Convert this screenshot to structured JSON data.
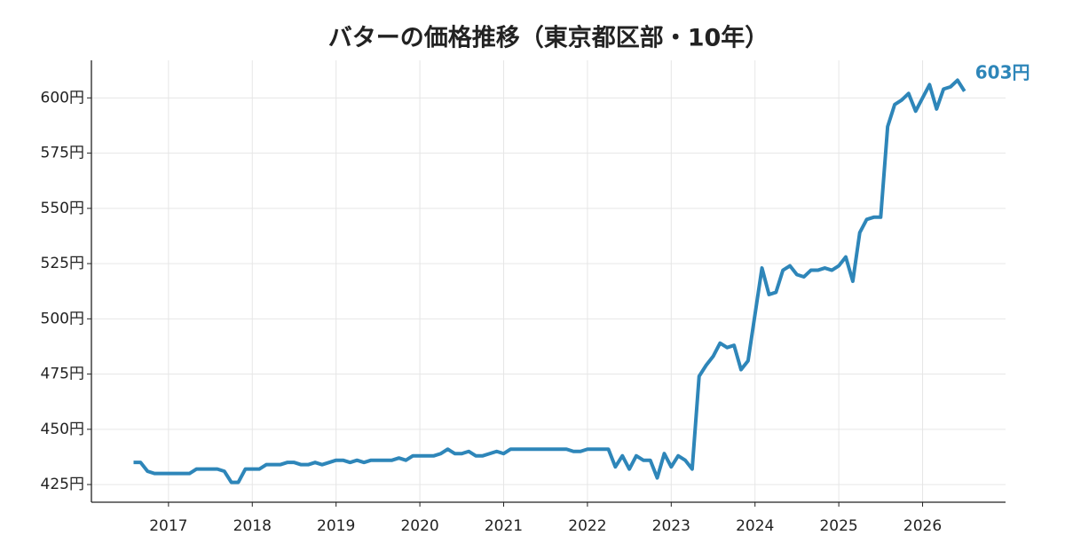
{
  "chart_data": {
    "type": "line",
    "title": "バターの価格推移（東京都区部・10年）",
    "x": [
      2016.583,
      2016.667,
      2016.75,
      2016.833,
      2016.917,
      2017,
      2017.083,
      2017.167,
      2017.25,
      2017.333,
      2017.417,
      2017.5,
      2017.583,
      2017.667,
      2017.75,
      2017.833,
      2017.917,
      2018,
      2018.083,
      2018.167,
      2018.25,
      2018.333,
      2018.417,
      2018.5,
      2018.583,
      2018.667,
      2018.75,
      2018.833,
      2018.917,
      2019,
      2019.083,
      2019.167,
      2019.25,
      2019.333,
      2019.417,
      2019.5,
      2019.583,
      2019.667,
      2019.75,
      2019.833,
      2019.917,
      2020,
      2020.083,
      2020.167,
      2020.25,
      2020.333,
      2020.417,
      2020.5,
      2020.583,
      2020.667,
      2020.75,
      2020.833,
      2020.917,
      2021,
      2021.083,
      2021.167,
      2021.25,
      2021.333,
      2021.417,
      2021.5,
      2021.583,
      2021.667,
      2021.75,
      2021.833,
      2021.917,
      2022,
      2022.083,
      2022.167,
      2022.25,
      2022.333,
      2022.417,
      2022.5,
      2022.583,
      2022.667,
      2022.75,
      2022.833,
      2022.917,
      2023,
      2023.083,
      2023.167,
      2023.25,
      2023.333,
      2023.417,
      2023.5,
      2023.583,
      2023.667,
      2023.75,
      2023.833,
      2023.917,
      2024,
      2024.083,
      2024.167,
      2024.25,
      2024.333,
      2024.417,
      2024.5,
      2024.583,
      2024.667,
      2024.75,
      2024.833,
      2024.917,
      2025,
      2025.083,
      2025.167,
      2025.25,
      2025.333,
      2025.417,
      2025.5,
      2025.583,
      2025.667,
      2025.75,
      2025.833,
      2025.917,
      2026,
      2026.083,
      2026.167,
      2026.25,
      2026.333,
      2026.417,
      2026.5
    ],
    "series": [
      {
        "color": "#2e86b9",
        "values": [
          435,
          435,
          431,
          430,
          430,
          430,
          430,
          430,
          430,
          432,
          432,
          432,
          432,
          431,
          426,
          426,
          432,
          432,
          432,
          434,
          434,
          434,
          435,
          435,
          434,
          434,
          435,
          434,
          435,
          436,
          436,
          435,
          436,
          435,
          436,
          436,
          436,
          436,
          437,
          436,
          438,
          438,
          438,
          438,
          439,
          441,
          439,
          439,
          440,
          438,
          438,
          439,
          440,
          439,
          441,
          441,
          441,
          441,
          441,
          441,
          441,
          441,
          441,
          440,
          440,
          441,
          441,
          441,
          441,
          433,
          438,
          432,
          438,
          436,
          436,
          428,
          439,
          433,
          438,
          436,
          432,
          474,
          479,
          483,
          489,
          487,
          488,
          477,
          481,
          502,
          523,
          511,
          512,
          522,
          524,
          520,
          519,
          522,
          522,
          523,
          522,
          524,
          528,
          517,
          539,
          545,
          546,
          546,
          587,
          597,
          599,
          602,
          594,
          600,
          606,
          595,
          604,
          605,
          608,
          603
        ],
        "value_labels": [
          null,
          null,
          null,
          null,
          null,
          null,
          null,
          null,
          null,
          null,
          null,
          null,
          null,
          null,
          null,
          null,
          null,
          null,
          null,
          null,
          null,
          null,
          null,
          null,
          null,
          null,
          null,
          null,
          null,
          null,
          null,
          null,
          null,
          null,
          null,
          null,
          null,
          null,
          null,
          null,
          null,
          null,
          null,
          null,
          null,
          null,
          null,
          null,
          null,
          null,
          null,
          null,
          null,
          null,
          null,
          null,
          null,
          null,
          null,
          null,
          null,
          null,
          null,
          null,
          null,
          null,
          null,
          null,
          null,
          null,
          null,
          null,
          null,
          null,
          null,
          null,
          null,
          null,
          null,
          null,
          null,
          null,
          null,
          null,
          null,
          null,
          null,
          null,
          null,
          null,
          null,
          null,
          null,
          null,
          null,
          null,
          null,
          null,
          null,
          null,
          null,
          null,
          null,
          null,
          null,
          null,
          null,
          null,
          null,
          null,
          null,
          null,
          null,
          null,
          null,
          null,
          null,
          null,
          null,
          "603円"
        ]
      }
    ],
    "xlim": [
      2016.08,
      2026.99
    ],
    "xticks": [
      2017,
      2018,
      2019,
      2020,
      2021,
      2022,
      2023,
      2024,
      2025,
      2026
    ],
    "ylim": [
      417,
      617
    ],
    "yticks": [
      {
        "value": 425,
        "label": "425円"
      },
      {
        "value": 450,
        "label": "450円"
      },
      {
        "value": 475,
        "label": "475円"
      },
      {
        "value": 500,
        "label": "500円"
      },
      {
        "value": 525,
        "label": "525円"
      },
      {
        "value": 550,
        "label": "550円"
      },
      {
        "value": 575,
        "label": "575円"
      },
      {
        "value": 600,
        "label": "600円"
      }
    ],
    "grid": true
  }
}
